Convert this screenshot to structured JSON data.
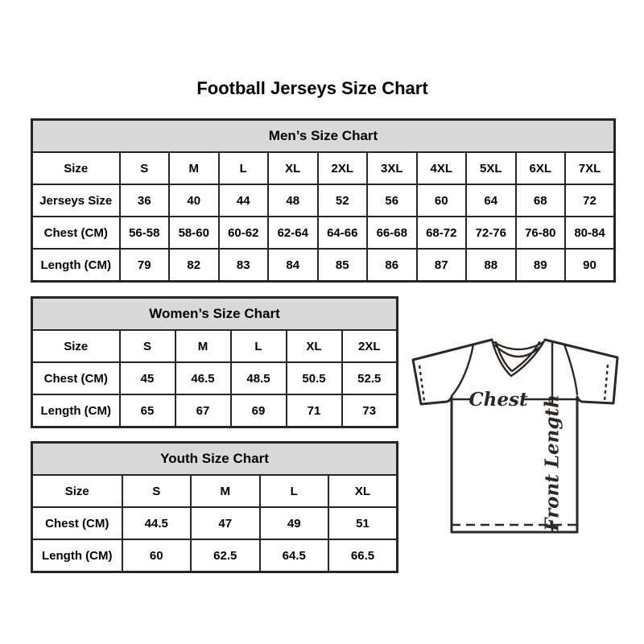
{
  "page": {
    "title": "Football Jerseys Size Chart"
  },
  "colors": {
    "header_bg": "#d9d9d9",
    "table_border": "#262626",
    "text": "#000000",
    "jersey_line": "#2e2723"
  },
  "tables": {
    "men": {
      "title": "Men’s Size Chart",
      "rows": [
        [
          "Size",
          "S",
          "M",
          "L",
          "XL",
          "2XL",
          "3XL",
          "4XL",
          "5XL",
          "6XL",
          "7XL"
        ],
        [
          "Jerseys Size",
          "36",
          "40",
          "44",
          "48",
          "52",
          "56",
          "60",
          "64",
          "68",
          "72"
        ],
        [
          "Chest (CM)",
          "56-58",
          "58-60",
          "60-62",
          "62-64",
          "64-66",
          "66-68",
          "68-72",
          "72-76",
          "76-80",
          "80-84"
        ],
        [
          "Length (CM)",
          "79",
          "82",
          "83",
          "84",
          "85",
          "86",
          "87",
          "88",
          "89",
          "90"
        ]
      ]
    },
    "women": {
      "title": "Women’s Size Chart",
      "rows": [
        [
          "Size",
          "S",
          "M",
          "L",
          "XL",
          "2XL"
        ],
        [
          "Chest (CM)",
          "45",
          "46.5",
          "48.5",
          "50.5",
          "52.5"
        ],
        [
          "Length (CM)",
          "65",
          "67",
          "69",
          "71",
          "73"
        ]
      ]
    },
    "youth": {
      "title": "Youth Size Chart",
      "rows": [
        [
          "Size",
          "S",
          "M",
          "L",
          "XL"
        ],
        [
          "Chest (CM)",
          "44.5",
          "47",
          "49",
          "51"
        ],
        [
          "Length (CM)",
          "60",
          "62.5",
          "64.5",
          "66.5"
        ]
      ]
    }
  },
  "diagram": {
    "chest_label": "Chest",
    "front_length_label": "Front Length"
  }
}
